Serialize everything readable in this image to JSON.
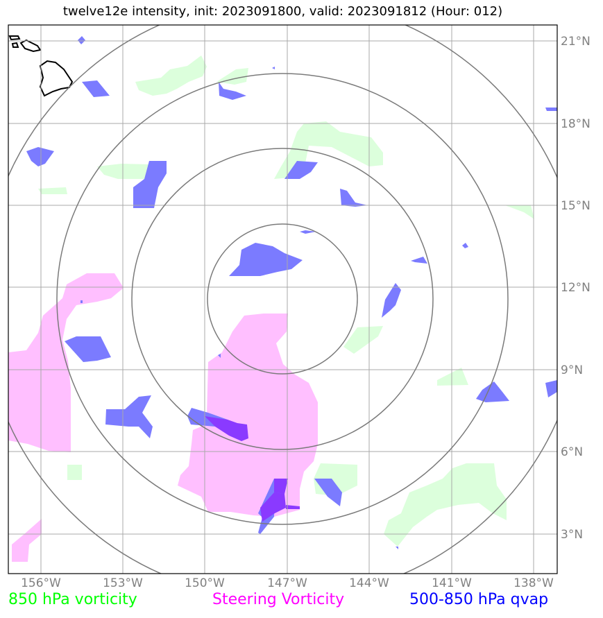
{
  "title": "twelve12e intensity, init: 2023091800, valid: 2023091812 (Hour: 012)",
  "lon_labels": [
    "156°W",
    "153°W",
    "150°W",
    "147°W",
    "144°W",
    "141°W",
    "138°W"
  ],
  "lat_labels": [
    "21°N",
    "18°N",
    "15°N",
    "12°N",
    "9°N",
    "6°N",
    "3°N"
  ],
  "range_ring_count": 4,
  "legend": [
    {
      "label": "850 hPa vorticity",
      "color": "#00ff00"
    },
    {
      "label": "Steering Vorticity",
      "color": "#ff00ff"
    },
    {
      "label": "500-850 hPa qvap",
      "color": "#0000ff"
    }
  ],
  "fill_colors": {
    "vorticity_850": "#dcffdc",
    "steering_vorticity": "#ffbfff",
    "qvap": "#7b7bff",
    "overlap": "#8a3aff"
  }
}
